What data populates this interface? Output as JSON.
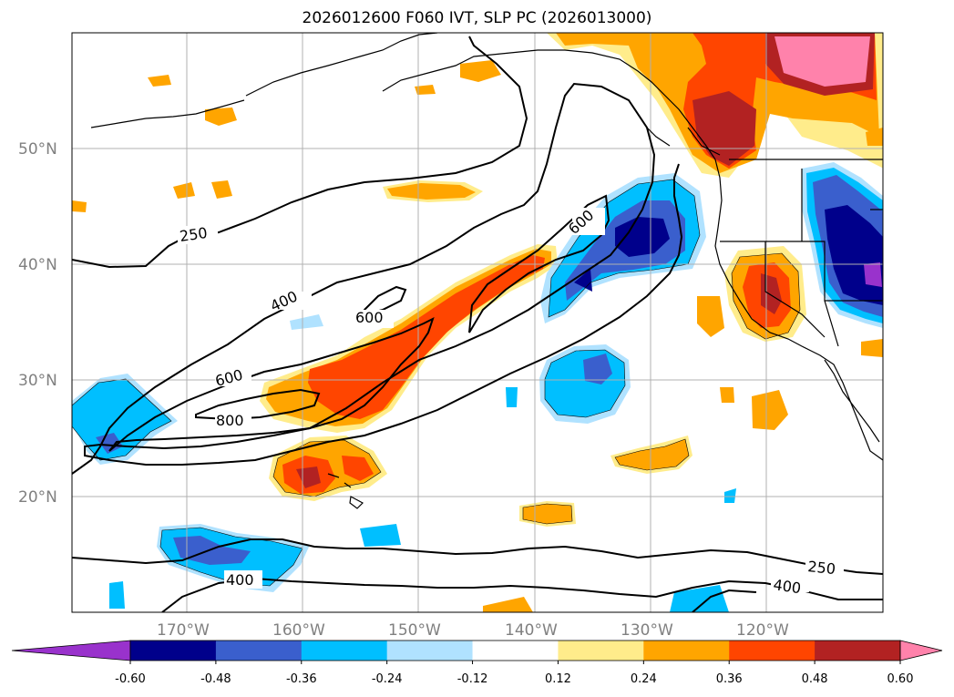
{
  "title": "2026012600 F060 IVT, SLP PC (2026013000)",
  "map": {
    "latitude_labels": [
      "50°N",
      "40°N",
      "30°N",
      "20°N"
    ],
    "longitude_labels": [
      "170°W",
      "160°W",
      "150°W",
      "140°W",
      "130°W",
      "120°W"
    ],
    "contour_labels": [
      "250",
      "400",
      "600",
      "600",
      "600",
      "800",
      "250",
      "400",
      "400"
    ]
  },
  "colorbar": {
    "ticks": [
      "-0.60",
      "-0.48",
      "-0.36",
      "-0.24",
      "-0.12",
      "0.12",
      "0.24",
      "0.36",
      "0.48",
      "0.60"
    ],
    "colors": [
      "#9932cc",
      "#00008b",
      "#3a5fcd",
      "#00bfff",
      "#b0e2ff",
      "#ffffff",
      "#ffec8b",
      "#ffa500",
      "#ff4500",
      "#b22222",
      "#ff82ab"
    ]
  }
}
